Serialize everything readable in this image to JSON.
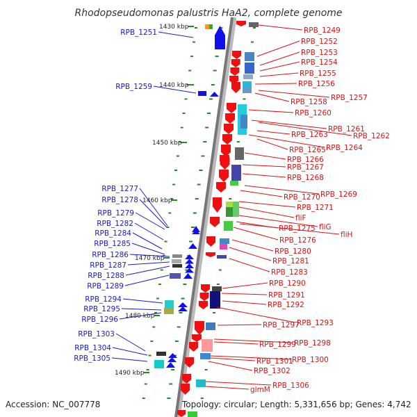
{
  "title": "Rhodopseudomonas palustris HaA2, complete genome",
  "footer": {
    "accession": "Accession: NC_007778",
    "topology": "Topology: circular; Length: 5,331,656 bp; Genes: 4,742"
  },
  "colors": {
    "forward_gene": "#1010ee",
    "reverse_gene": "#ee1010",
    "left_label": "#1a1acc",
    "right_label": "#dd1111",
    "tick": "#228822"
  },
  "kbp_labels": [
    "1430 kbp",
    "1440 kbp",
    "1450 kbp",
    "1460 kbp",
    "1470 kbp",
    "1480 kbp",
    "1490 kbp"
  ],
  "left_genes": [
    "RPB_1251",
    "RPB_1259",
    "RPB_1277",
    "RPB_1278",
    "RPB_1279",
    "RPB_1282",
    "RPB_1284",
    "RPB_1285",
    "RPB_1286",
    "RPB_1287",
    "RPB_1288",
    "RPB_1289",
    "RPB_1294",
    "RPB_1295",
    "RPB_1296",
    "RPB_1303",
    "RPB_1304",
    "RPB_1305"
  ],
  "right_genes": [
    "RPB_1249",
    "RPB_1252",
    "RPB_1253",
    "RPB_1254",
    "RPB_1255",
    "RPB_1256",
    "RPB_1257",
    "RPB_1258",
    "RPB_1260",
    "RPB_1261",
    "RPB_1262",
    "RPB_1263",
    "RPB_1264",
    "RPB_1265",
    "RPB_1266",
    "RPB_1267",
    "RPB_1268",
    "RPB_1269",
    "RPB_1270",
    "RPB_1271",
    "fliF",
    "fliG",
    "RPB_1275",
    "fliH",
    "RPB_1276",
    "RPB_1280",
    "RPB_1281",
    "RPB_1283",
    "RPB_1290",
    "RPB_1291",
    "RPB_1292",
    "RPB_1293",
    "RPB_1297",
    "RPB_1298",
    "RPB_1299",
    "RPB_1300",
    "RPB_1301",
    "RPB_1302",
    "RPB_1306",
    "glmM"
  ]
}
